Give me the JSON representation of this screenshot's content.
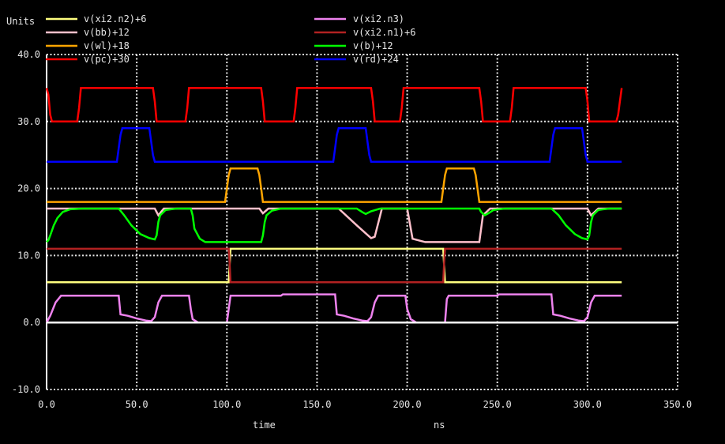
{
  "chart_data": {
    "type": "line",
    "title": "",
    "ylabel": "Units",
    "xlabel": "time",
    "xunit": "ns",
    "xlim": [
      0,
      350
    ],
    "ylim": [
      -10,
      40
    ],
    "grid": true,
    "legend_position": "top",
    "x_ticks": [
      "0.0",
      "50.0",
      "100.0",
      "150.0",
      "200.0",
      "250.0",
      "300.0",
      "350.0"
    ],
    "x_tick_values": [
      0,
      50,
      100,
      150,
      200,
      250,
      300,
      350
    ],
    "y_ticks": [
      "40.0",
      "30.0",
      "20.0",
      "10.0",
      "0.0",
      "-10.0"
    ],
    "y_tick_values": [
      40,
      30,
      20,
      10,
      0,
      -10
    ],
    "series": [
      {
        "name": "v(xi2.n2)+6",
        "color": "#ffff80",
        "legend_col": 0,
        "legend_row": 0,
        "points": [
          [
            0,
            6
          ],
          [
            101,
            6
          ],
          [
            102,
            11
          ],
          [
            220,
            11
          ],
          [
            221,
            6
          ],
          [
            319,
            6
          ]
        ]
      },
      {
        "name": "v(bb)+12",
        "color": "#ffc0cb",
        "legend_col": 0,
        "legend_row": 1,
        "points": [
          [
            0,
            17
          ],
          [
            40,
            17
          ],
          [
            60,
            17
          ],
          [
            62,
            16
          ],
          [
            65,
            17
          ],
          [
            100,
            17
          ],
          [
            118,
            17
          ],
          [
            120,
            16.3
          ],
          [
            123,
            17
          ],
          [
            162,
            17
          ],
          [
            172,
            14.5
          ],
          [
            180,
            12.6
          ],
          [
            182,
            12.8
          ],
          [
            186,
            17
          ],
          [
            190,
            17
          ],
          [
            200,
            17
          ],
          [
            203,
            12.5
          ],
          [
            210,
            12
          ],
          [
            240,
            12
          ],
          [
            242,
            16
          ],
          [
            246,
            17
          ],
          [
            280,
            17
          ],
          [
            300,
            17
          ],
          [
            302,
            16
          ],
          [
            306,
            17
          ],
          [
            319,
            17
          ]
        ]
      },
      {
        "name": "v(wl)+18",
        "color": "#ffa500",
        "legend_col": 0,
        "legend_row": 2,
        "points": [
          [
            0,
            18
          ],
          [
            99,
            18
          ],
          [
            100,
            20
          ],
          [
            101,
            22
          ],
          [
            102,
            23
          ],
          [
            117,
            23
          ],
          [
            118,
            22
          ],
          [
            119,
            20
          ],
          [
            120,
            18
          ],
          [
            219,
            18
          ],
          [
            220,
            20
          ],
          [
            221,
            22
          ],
          [
            222,
            23
          ],
          [
            237,
            23
          ],
          [
            238,
            22
          ],
          [
            239,
            20
          ],
          [
            240,
            18
          ],
          [
            319,
            18
          ]
        ]
      },
      {
        "name": "v(pc)+30",
        "color": "#ff0000",
        "legend_col": 0,
        "legend_row": 3,
        "points": [
          [
            0,
            35
          ],
          [
            1,
            34
          ],
          [
            2,
            31
          ],
          [
            3,
            30
          ],
          [
            17,
            30
          ],
          [
            18,
            32
          ],
          [
            19,
            35
          ],
          [
            59,
            35
          ],
          [
            60,
            33
          ],
          [
            61,
            30
          ],
          [
            77,
            30
          ],
          [
            78,
            32
          ],
          [
            79,
            35
          ],
          [
            119,
            35
          ],
          [
            120,
            33
          ],
          [
            121,
            30
          ],
          [
            137,
            30
          ],
          [
            138,
            32
          ],
          [
            139,
            35
          ],
          [
            180,
            35
          ],
          [
            181,
            33
          ],
          [
            182,
            30
          ],
          [
            196,
            30
          ],
          [
            197,
            32
          ],
          [
            198,
            35
          ],
          [
            240,
            35
          ],
          [
            241,
            33
          ],
          [
            242,
            30
          ],
          [
            257,
            30
          ],
          [
            258,
            32
          ],
          [
            259,
            35
          ],
          [
            299,
            35
          ],
          [
            300,
            33
          ],
          [
            301,
            30
          ],
          [
            316,
            30
          ],
          [
            317,
            31
          ],
          [
            318,
            33
          ],
          [
            319,
            35
          ]
        ]
      },
      {
        "name": "v(xi2.n3)",
        "color": "#ee82ee",
        "legend_col": 1,
        "legend_row": 0,
        "points": [
          [
            0,
            0
          ],
          [
            2,
            1
          ],
          [
            5,
            3
          ],
          [
            8,
            4
          ],
          [
            40,
            4
          ],
          [
            41,
            1.2
          ],
          [
            45,
            1
          ],
          [
            50,
            0.6
          ],
          [
            55,
            0.3
          ],
          [
            58,
            0.2
          ],
          [
            60,
            0.8
          ],
          [
            62,
            3
          ],
          [
            64,
            4
          ],
          [
            79,
            4
          ],
          [
            80,
            2
          ],
          [
            81,
            0.5
          ],
          [
            84,
            0
          ],
          [
            100,
            0
          ],
          [
            101,
            2
          ],
          [
            102,
            4
          ],
          [
            130,
            4
          ],
          [
            131,
            4.2
          ],
          [
            160,
            4.2
          ],
          [
            161,
            1.2
          ],
          [
            165,
            1
          ],
          [
            170,
            0.6
          ],
          [
            175,
            0.3
          ],
          [
            178,
            0.2
          ],
          [
            180,
            0.8
          ],
          [
            182,
            3
          ],
          [
            184,
            4
          ],
          [
            199,
            4
          ],
          [
            200,
            2
          ],
          [
            202,
            0.5
          ],
          [
            205,
            0
          ],
          [
            221,
            0
          ],
          [
            222,
            3.5
          ],
          [
            223,
            4
          ],
          [
            250,
            4
          ],
          [
            251,
            4.2
          ],
          [
            280,
            4.2
          ],
          [
            281,
            1.2
          ],
          [
            285,
            1
          ],
          [
            290,
            0.6
          ],
          [
            295,
            0.3
          ],
          [
            298,
            0.2
          ],
          [
            300,
            0.8
          ],
          [
            302,
            3
          ],
          [
            304,
            4
          ],
          [
            319,
            4
          ]
        ]
      },
      {
        "name": "v(xi2.n1)+6",
        "color": "#b22222",
        "legend_col": 1,
        "legend_row": 1,
        "points": [
          [
            0,
            11
          ],
          [
            101,
            11
          ],
          [
            101.5,
            9
          ],
          [
            102,
            6
          ],
          [
            220,
            6
          ],
          [
            220.5,
            9
          ],
          [
            221,
            11
          ],
          [
            319,
            11
          ]
        ]
      },
      {
        "name": "v(b)+12",
        "color": "#00ff00",
        "legend_col": 1,
        "legend_row": 2,
        "points": [
          [
            0,
            12
          ],
          [
            1,
            12.3
          ],
          [
            2,
            13
          ],
          [
            4,
            14.5
          ],
          [
            6,
            15.6
          ],
          [
            9,
            16.5
          ],
          [
            13,
            16.9
          ],
          [
            20,
            17
          ],
          [
            40,
            17
          ],
          [
            43,
            16
          ],
          [
            47,
            14.5
          ],
          [
            52,
            13.2
          ],
          [
            57,
            12.6
          ],
          [
            60,
            12.4
          ],
          [
            61,
            13
          ],
          [
            62,
            15
          ],
          [
            63,
            16
          ],
          [
            66,
            16.8
          ],
          [
            72,
            17
          ],
          [
            80,
            17
          ],
          [
            81,
            16
          ],
          [
            82,
            14
          ],
          [
            85,
            12.5
          ],
          [
            88,
            12
          ],
          [
            100,
            12
          ],
          [
            119,
            12
          ],
          [
            120,
            13
          ],
          [
            121,
            15
          ],
          [
            122,
            16
          ],
          [
            125,
            16.7
          ],
          [
            130,
            17
          ],
          [
            160,
            17
          ],
          [
            172,
            17
          ],
          [
            175,
            16.5
          ],
          [
            177,
            16.2
          ],
          [
            180,
            16.6
          ],
          [
            185,
            17
          ],
          [
            200,
            17
          ],
          [
            240,
            17
          ],
          [
            241,
            16.5
          ],
          [
            243,
            16
          ],
          [
            245,
            16.3
          ],
          [
            248,
            16.8
          ],
          [
            254,
            17
          ],
          [
            280,
            17
          ],
          [
            284,
            16
          ],
          [
            288,
            14.5
          ],
          [
            293,
            13.2
          ],
          [
            297,
            12.6
          ],
          [
            300,
            12.4
          ],
          [
            301,
            13
          ],
          [
            302,
            15
          ],
          [
            303,
            16
          ],
          [
            306,
            16.8
          ],
          [
            312,
            17
          ],
          [
            319,
            17
          ]
        ]
      },
      {
        "name": "v(rd)+24",
        "color": "#0000ff",
        "legend_col": 1,
        "legend_row": 3,
        "points": [
          [
            0,
            24
          ],
          [
            39,
            24
          ],
          [
            40,
            26
          ],
          [
            41,
            28
          ],
          [
            42,
            29
          ],
          [
            57,
            29
          ],
          [
            58,
            27
          ],
          [
            59,
            25
          ],
          [
            60,
            24
          ],
          [
            159,
            24
          ],
          [
            160,
            26
          ],
          [
            161,
            28
          ],
          [
            162,
            29
          ],
          [
            177,
            29
          ],
          [
            178,
            27
          ],
          [
            179,
            25
          ],
          [
            180,
            24
          ],
          [
            279,
            24
          ],
          [
            280,
            26
          ],
          [
            281,
            28
          ],
          [
            282,
            29
          ],
          [
            297,
            29
          ],
          [
            298,
            27
          ],
          [
            299,
            25
          ],
          [
            300,
            24
          ],
          [
            319,
            24
          ]
        ]
      },
      {
        "name": "zero",
        "color": "#ffffff",
        "legend_col": -1,
        "legend_row": -1,
        "points": [
          [
            0,
            0
          ],
          [
            350,
            0
          ]
        ]
      }
    ]
  }
}
